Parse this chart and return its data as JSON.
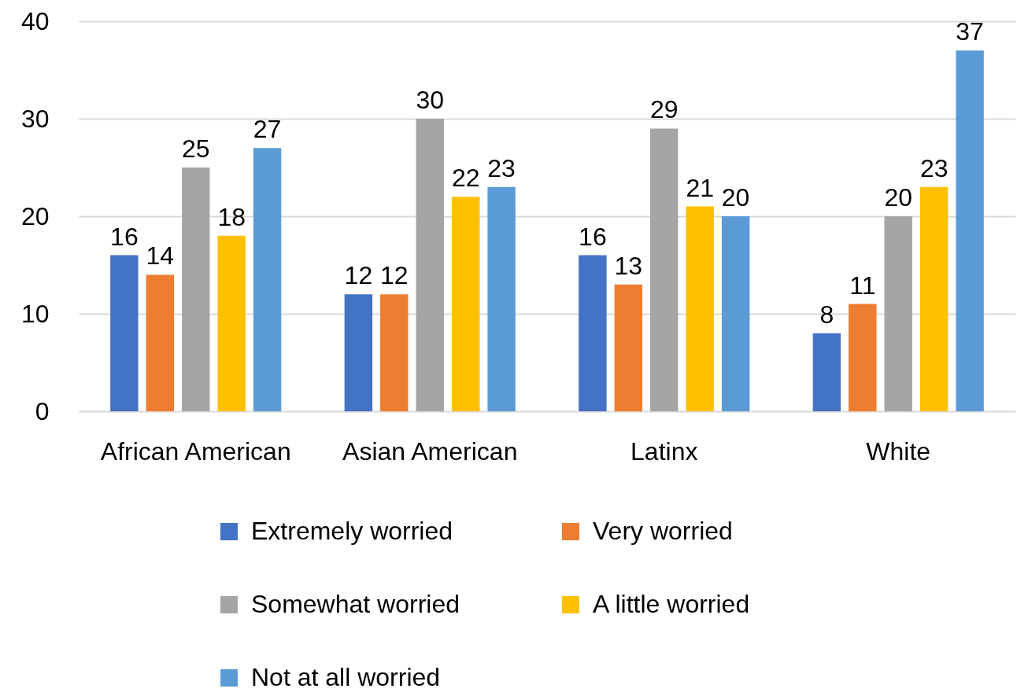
{
  "chart_data": {
    "type": "bar",
    "categories": [
      "African American",
      "Asian American",
      "Latinx",
      "White"
    ],
    "series": [
      {
        "name": "Extremely worried",
        "color": "#4472c4",
        "values": [
          16,
          12,
          16,
          8
        ]
      },
      {
        "name": "Very worried",
        "color": "#ed7d31",
        "values": [
          14,
          12,
          13,
          11
        ]
      },
      {
        "name": "Somewhat worried",
        "color": "#a5a5a5",
        "values": [
          25,
          30,
          29,
          20
        ]
      },
      {
        "name": "A little worried",
        "color": "#ffc000",
        "values": [
          18,
          22,
          21,
          23
        ]
      },
      {
        "name": "Not at all worried",
        "color": "#5b9bd5",
        "values": [
          27,
          23,
          20,
          37
        ]
      }
    ],
    "ylim": [
      0,
      40
    ],
    "yticks": [
      0,
      10,
      20,
      30,
      40
    ],
    "grid": "y",
    "legend": "bottom",
    "data_labels": true
  }
}
